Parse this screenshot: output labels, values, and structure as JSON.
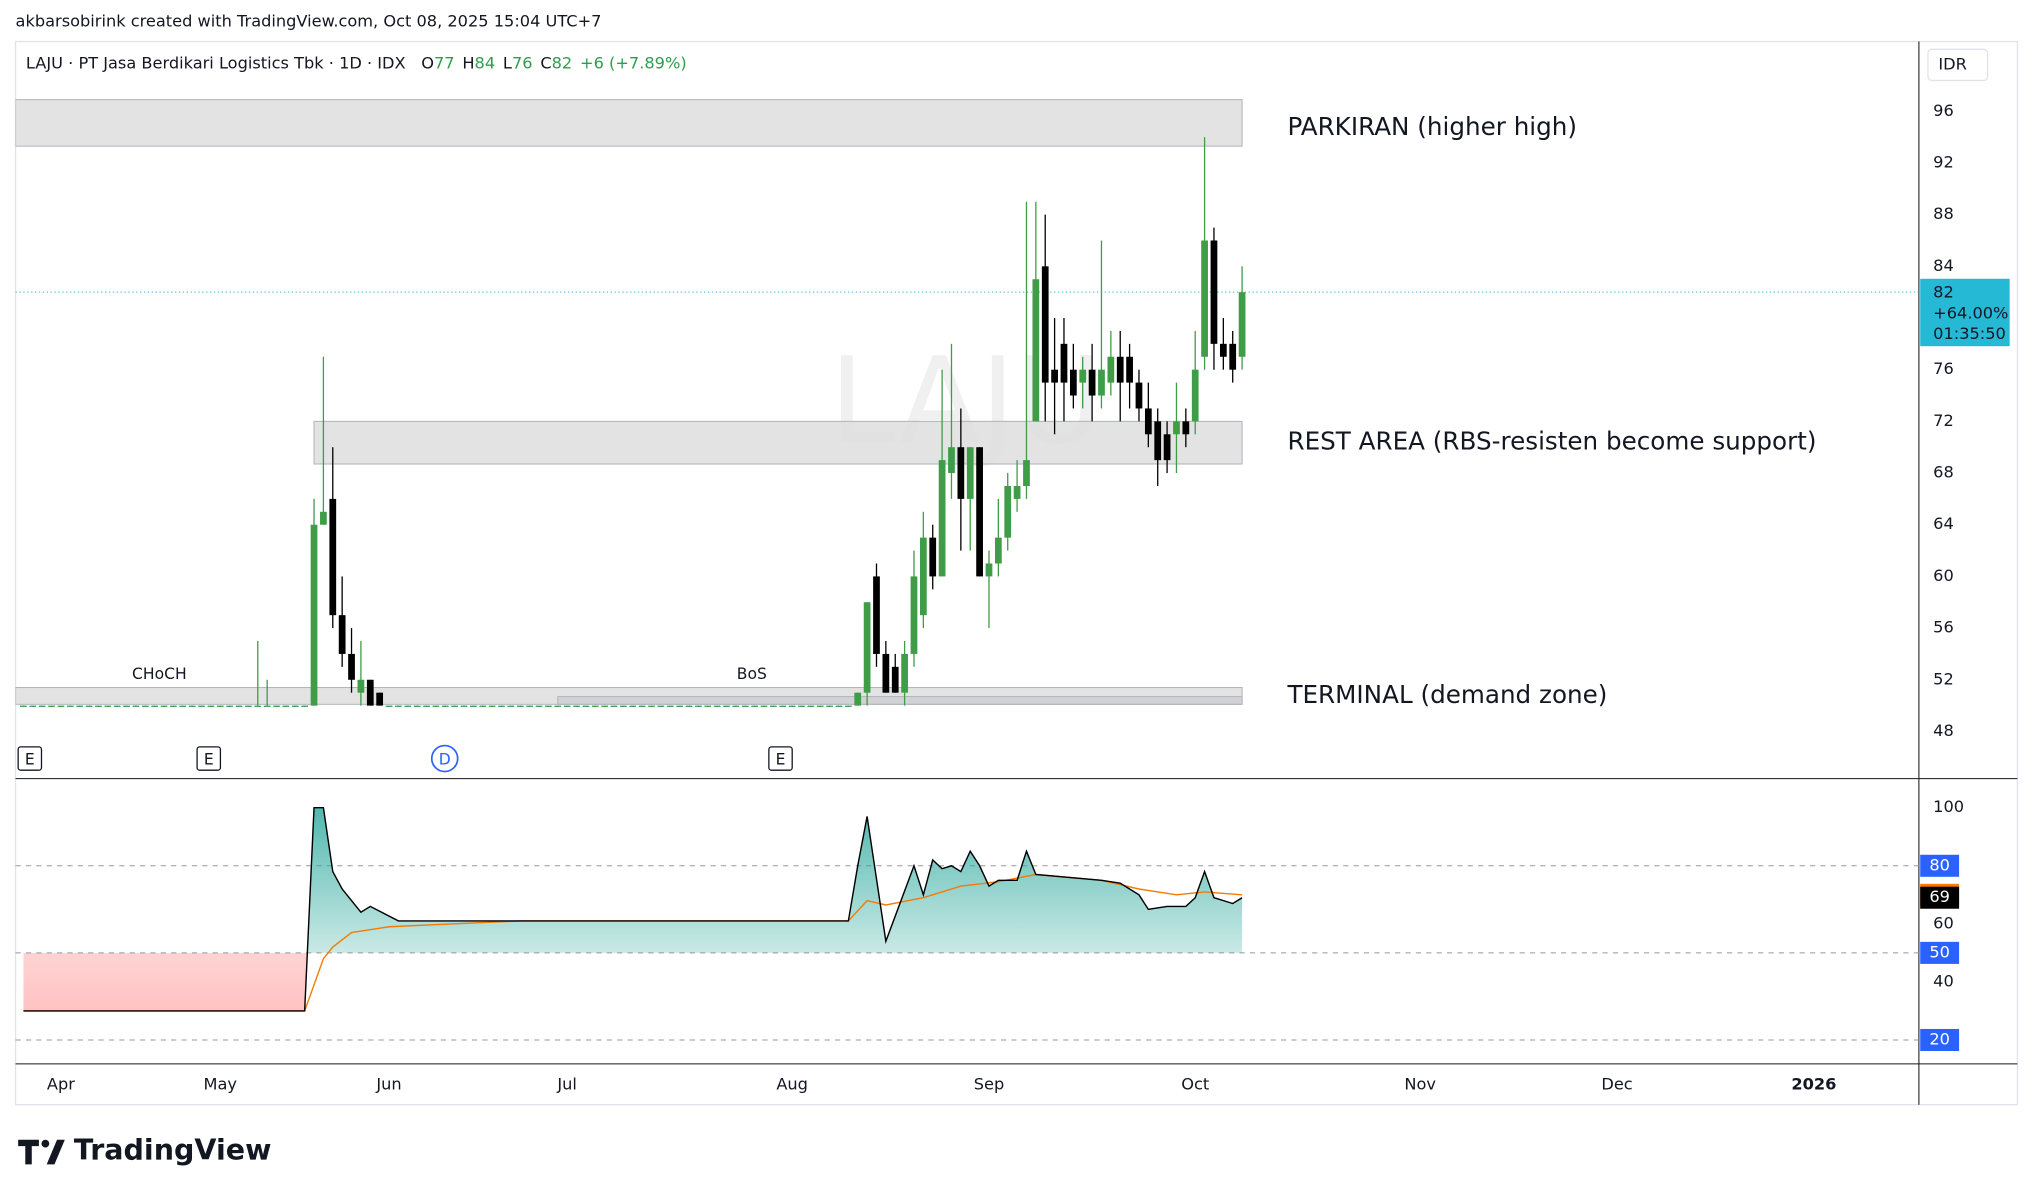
{
  "header": {
    "credit": "akbarsobirink created with TradingView.com, Oct 08, 2025 15:04 UTC+7",
    "logo": "TradingView"
  },
  "chart_data": [
    {
      "type": "candlestick",
      "title": "LAJU · PT Jasa Berdikari Logistics Tbk · 1D · IDX",
      "watermark": "LAJU",
      "currency": "IDR",
      "ohlc_legend": [
        {
          "label": "O",
          "value": 77
        },
        {
          "label": "H",
          "value": 84
        },
        {
          "label": "L",
          "value": 76
        },
        {
          "label": "C",
          "value": 82
        }
      ],
      "change": "+6 (+7.89%)",
      "up_color": "#3f9c47",
      "down_color": "#000000",
      "open": [
        50,
        50,
        50,
        50,
        50,
        50,
        50,
        50,
        50,
        50,
        50,
        50,
        50,
        50,
        50,
        50,
        50,
        50,
        50,
        50,
        50,
        50,
        50,
        50,
        50,
        50,
        50,
        50,
        50,
        50,
        50,
        50,
        64,
        66,
        57,
        54,
        51,
        52,
        51,
        50,
        50,
        50,
        50,
        50,
        50,
        50,
        50,
        50,
        50,
        50,
        50,
        50,
        50,
        50,
        50,
        50,
        50,
        50,
        50,
        50,
        50,
        50,
        50,
        50,
        50,
        50,
        50,
        50,
        50,
        50,
        50,
        50,
        50,
        50,
        50,
        50,
        50,
        50,
        50,
        50,
        50,
        50,
        50,
        50,
        50,
        50,
        50,
        50,
        50,
        50,
        51,
        60,
        54,
        53,
        51,
        54,
        57,
        63,
        60,
        68,
        70,
        66,
        70,
        60,
        61,
        63,
        66,
        67,
        72,
        84,
        76,
        78,
        76,
        75,
        76,
        74,
        75,
        77,
        77,
        75,
        73,
        72,
        71,
        71,
        72,
        72,
        77,
        86,
        78,
        78,
        77
      ],
      "high": [
        50,
        50,
        50,
        50,
        50,
        50,
        50,
        50,
        50,
        50,
        50,
        50,
        50,
        50,
        50,
        50,
        50,
        50,
        50,
        50,
        50,
        50,
        50,
        50,
        50,
        55,
        52,
        50,
        50,
        50,
        50,
        66,
        77,
        70,
        60,
        56,
        55,
        52,
        51,
        50,
        50,
        50,
        50,
        50,
        50,
        50,
        50,
        50,
        50,
        50,
        50,
        50,
        50,
        50,
        50,
        50,
        50,
        50,
        50,
        50,
        50,
        50,
        50,
        50,
        50,
        50,
        50,
        50,
        50,
        50,
        50,
        50,
        50,
        50,
        50,
        50,
        50,
        50,
        50,
        50,
        50,
        50,
        50,
        50,
        50,
        50,
        50,
        50,
        50,
        51,
        58,
        61,
        55,
        54,
        55,
        62,
        65,
        64,
        76,
        78,
        73,
        70,
        70,
        62,
        66,
        68,
        69,
        89,
        89,
        88,
        80,
        80,
        78,
        77,
        78,
        86,
        79,
        79,
        78,
        76,
        75,
        73,
        72,
        75,
        73,
        79,
        94,
        87,
        80,
        79,
        84
      ],
      "low": [
        50,
        50,
        50,
        50,
        50,
        50,
        50,
        50,
        50,
        50,
        50,
        50,
        50,
        50,
        50,
        50,
        50,
        50,
        50,
        50,
        50,
        50,
        50,
        50,
        50,
        50,
        50,
        50,
        50,
        50,
        50,
        50,
        64,
        56,
        53,
        51,
        50,
        50,
        50,
        50,
        50,
        50,
        50,
        50,
        50,
        50,
        50,
        50,
        50,
        50,
        50,
        50,
        50,
        50,
        50,
        50,
        50,
        50,
        50,
        50,
        50,
        50,
        50,
        50,
        50,
        50,
        50,
        50,
        50,
        50,
        50,
        50,
        50,
        50,
        50,
        50,
        50,
        50,
        50,
        50,
        50,
        50,
        50,
        50,
        50,
        50,
        50,
        50,
        50,
        50,
        50,
        53,
        51,
        51,
        50,
        53,
        56,
        59,
        60,
        66,
        62,
        62,
        60,
        56,
        60,
        62,
        65,
        66,
        72,
        72,
        71,
        72,
        73,
        73,
        72,
        73,
        74,
        72,
        73,
        72,
        70,
        67,
        68,
        68,
        70,
        71,
        76,
        76,
        76,
        75,
        76
      ],
      "close": [
        50,
        50,
        50,
        50,
        50,
        50,
        50,
        50,
        50,
        50,
        50,
        50,
        50,
        50,
        50,
        50,
        50,
        50,
        50,
        50,
        50,
        50,
        50,
        50,
        50,
        50,
        50,
        50,
        50,
        50,
        50,
        64,
        65,
        57,
        54,
        52,
        52,
        50,
        50,
        50,
        50,
        50,
        50,
        50,
        50,
        50,
        50,
        50,
        50,
        50,
        50,
        50,
        50,
        50,
        50,
        50,
        50,
        50,
        50,
        50,
        50,
        50,
        50,
        50,
        50,
        50,
        50,
        50,
        50,
        50,
        50,
        50,
        50,
        50,
        50,
        50,
        50,
        50,
        50,
        50,
        50,
        50,
        50,
        50,
        50,
        50,
        50,
        50,
        50,
        51,
        58,
        54,
        51,
        51,
        54,
        60,
        63,
        60,
        69,
        70,
        66,
        70,
        60,
        61,
        63,
        67,
        67,
        69,
        83,
        75,
        75,
        75,
        74,
        76,
        74,
        76,
        77,
        75,
        75,
        73,
        71,
        69,
        69,
        72,
        71,
        76,
        86,
        78,
        77,
        76,
        82
      ],
      "xlim": [
        -0.84,
        202.2
      ],
      "xticks": [
        {
          "value": 4,
          "label": "Apr"
        },
        {
          "value": 21,
          "label": "May"
        },
        {
          "value": 39,
          "label": "Jun"
        },
        {
          "value": 58,
          "label": "Jul"
        },
        {
          "value": 82,
          "label": "Aug"
        },
        {
          "value": 103,
          "label": "Sep"
        },
        {
          "value": 125,
          "label": "Oct"
        },
        {
          "value": 149,
          "label": "Nov"
        },
        {
          "value": 170,
          "label": "Dec"
        },
        {
          "value": 191,
          "label": "2026"
        }
      ],
      "ylim": [
        44.4,
        101.4
      ],
      "yticks": [
        48,
        52,
        56,
        60,
        64,
        68,
        72,
        76,
        80,
        84,
        88,
        92,
        96
      ],
      "last_price_label": {
        "change": "+64.00%",
        "countdown": "01:35:50",
        "color": "#26b9d6"
      },
      "zones": [
        {
          "label": "PARKIRAN (higher high)",
          "x": [
            -0.84,
            130
          ],
          "y": [
            93.3,
            96.9
          ]
        },
        {
          "label": "REST AREA (RBS-resisten become support)",
          "x": [
            31,
            130
          ],
          "y": [
            68.7,
            72
          ]
        },
        {
          "label": "TERMINAL (demand zone)",
          "x": [
            -0.84,
            130
          ],
          "y": [
            50.1,
            51.4
          ]
        },
        {
          "x": [
            57,
            130
          ],
          "y": [
            50.1,
            50.7
          ]
        }
      ],
      "annotations": [
        {
          "text": "CHoCH",
          "x": 14.5,
          "y": 52.4
        },
        {
          "text": "BoS",
          "x": 77.7,
          "y": 52.4
        }
      ],
      "events": [
        "E",
        "E",
        "D",
        "E"
      ]
    },
    {
      "type": "line",
      "xlim": [
        -0.84,
        202.2
      ],
      "ylim": [
        12,
        109.8
      ],
      "yticks": [
        20,
        40,
        60,
        80,
        100
      ],
      "levels": [
        80,
        50,
        20
      ],
      "level_color": "#2962ff",
      "series": [
        {
          "color": "#000000",
          "x": [
            0,
            30,
            31,
            32,
            33,
            34,
            36,
            37,
            40,
            88,
            89,
            90,
            92,
            95,
            96,
            97,
            98,
            99,
            100,
            101,
            102,
            103,
            104,
            106,
            107,
            108,
            115,
            117,
            119,
            120,
            122,
            124,
            125,
            126,
            127,
            129,
            130
          ],
          "values": [
            30,
            30,
            100,
            100,
            78,
            72,
            64,
            66,
            61,
            61,
            80,
            97,
            54,
            80,
            70,
            82,
            79,
            80,
            78,
            85,
            80,
            73,
            75,
            75,
            85,
            77,
            75,
            74,
            70,
            65,
            66,
            66,
            69,
            78,
            69,
            67,
            69
          ]
        },
        {
          "color": "#f57c00",
          "x": [
            0,
            30,
            31,
            32,
            33,
            35,
            39,
            46,
            53,
            88,
            90,
            92,
            96,
            100,
            104,
            108,
            115,
            119,
            123,
            126,
            130
          ],
          "values": [
            30,
            30,
            39,
            48,
            52,
            57,
            59,
            60,
            61,
            61,
            68,
            66.5,
            69,
            73,
            74.5,
            77,
            75,
            72,
            70,
            71,
            70
          ]
        }
      ]
    }
  ]
}
